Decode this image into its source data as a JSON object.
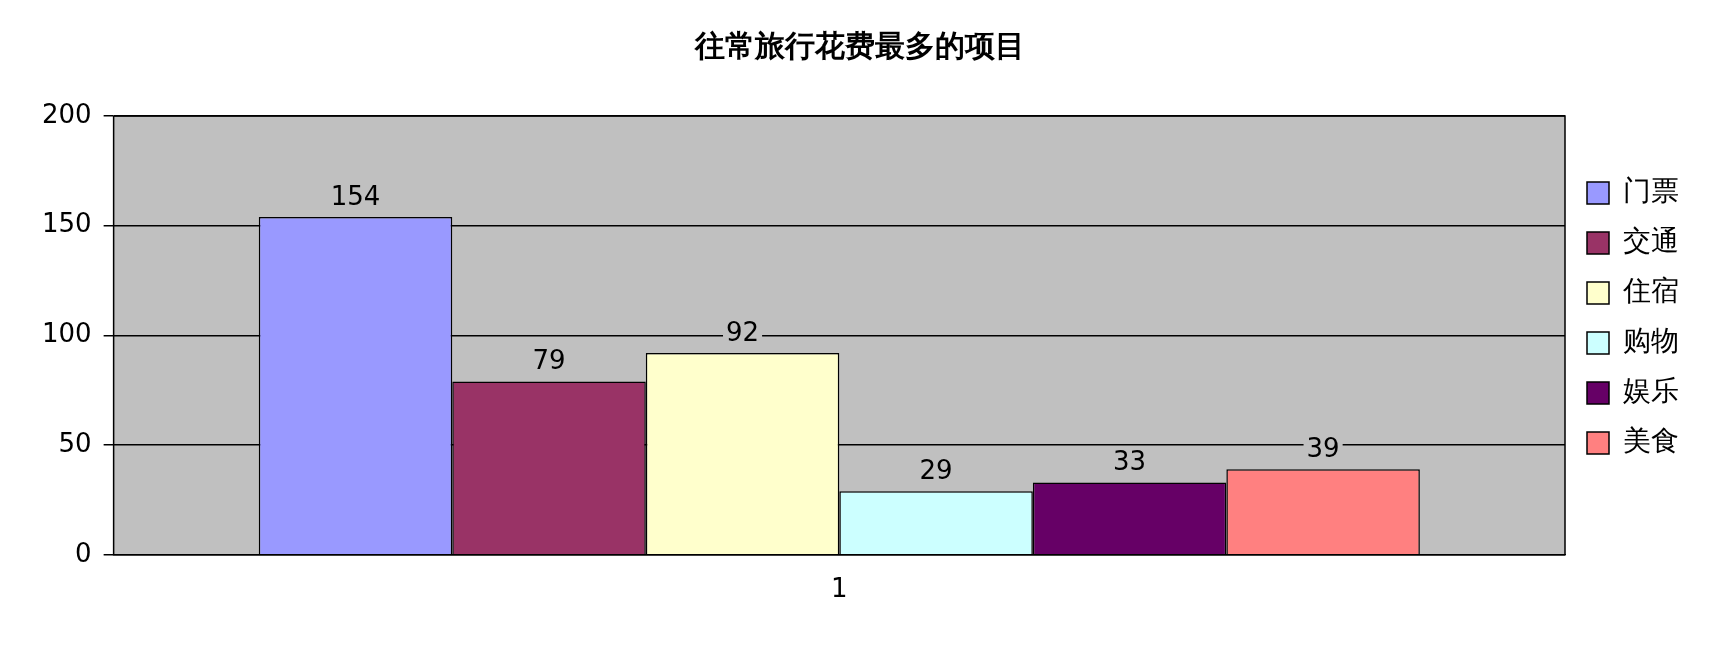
{
  "chart_data": {
    "type": "bar",
    "title": "往常旅行花费最多的项目",
    "categories": [
      "1"
    ],
    "series": [
      {
        "name": "门票",
        "color": "#9999ff",
        "values": [
          154
        ]
      },
      {
        "name": "交通",
        "color": "#993366",
        "values": [
          79
        ]
      },
      {
        "name": "住宿",
        "color": "#ffffcc",
        "values": [
          92
        ]
      },
      {
        "name": "购物",
        "color": "#ccffff",
        "values": [
          29
        ]
      },
      {
        "name": "娱乐",
        "color": "#660066",
        "values": [
          33
        ]
      },
      {
        "name": "美食",
        "color": "#ff8080",
        "values": [
          39
        ]
      }
    ],
    "ylim": [
      0,
      200
    ],
    "yticks": [
      0,
      50,
      100,
      150,
      200
    ],
    "grid": "y",
    "legend": "right",
    "data_labels": true
  }
}
